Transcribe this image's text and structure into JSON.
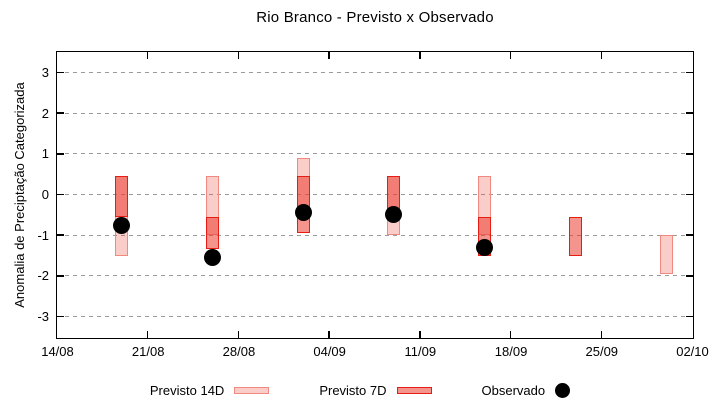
{
  "colors": {
    "bar_light_fill": "rgba(235,70,55,0.27)",
    "bar_light_border": "#f08a80",
    "bar_dark_fill": "rgba(235,60,45,0.55)",
    "bar_dark_border": "#e51d12",
    "dot": "#000000",
    "grid": "#9a9a9a",
    "axis": "#000000"
  },
  "chart_data": {
    "type": "bar",
    "subtype": "range-bars-with-observed-dots",
    "title": "Rio Branco - Previsto x Observado",
    "ylabel": "Anomalia de Preciptação Categorizada",
    "xlabel": "",
    "ylim": [
      -3.5,
      3.5
    ],
    "yticks": [
      3,
      2,
      1,
      0,
      -1,
      -2,
      -3
    ],
    "grid": "dotted-horizontal",
    "legend_position": "below-chart",
    "x_days_total": 49,
    "xticks": [
      {
        "day": 0,
        "label": "14/08"
      },
      {
        "day": 7,
        "label": "21/08"
      },
      {
        "day": 14,
        "label": "28/08"
      },
      {
        "day": 21,
        "label": "04/09"
      },
      {
        "day": 28,
        "label": "11/09"
      },
      {
        "day": 35,
        "label": "18/09"
      },
      {
        "day": 42,
        "label": "25/09"
      },
      {
        "day": 49,
        "label": "02/10"
      }
    ],
    "series": [
      {
        "name": "Previsto 14D",
        "kind": "range",
        "style": "light",
        "points": [
          {
            "day": 5,
            "low": -1.5,
            "high": 0.45
          },
          {
            "day": 12,
            "low": -1.0,
            "high": 0.45
          },
          {
            "day": 19,
            "low": -0.55,
            "high": 0.9
          },
          {
            "day": 26,
            "low": -1.0,
            "high": 0.45
          },
          {
            "day": 33,
            "low": -1.0,
            "high": 0.45
          },
          {
            "day": 47,
            "low": -1.95,
            "high": -1.0
          }
        ]
      },
      {
        "name": "Previsto 7D",
        "kind": "range",
        "style": "dark",
        "points": [
          {
            "day": 5,
            "low": -0.55,
            "high": 0.45
          },
          {
            "day": 12,
            "low": -1.35,
            "high": -0.55
          },
          {
            "day": 19,
            "low": -0.95,
            "high": 0.45
          },
          {
            "day": 26,
            "low": -0.55,
            "high": 0.45
          },
          {
            "day": 33,
            "low": -1.5,
            "high": -0.55
          },
          {
            "day": 40,
            "low": -1.5,
            "high": -0.55
          }
        ]
      },
      {
        "name": "Observado",
        "kind": "dot",
        "style": "dot",
        "points": [
          {
            "day": 5,
            "value": -0.75
          },
          {
            "day": 12,
            "value": -1.55
          },
          {
            "day": 19,
            "value": -0.45
          },
          {
            "day": 26,
            "value": -0.5
          },
          {
            "day": 33,
            "value": -1.3
          }
        ]
      }
    ]
  }
}
